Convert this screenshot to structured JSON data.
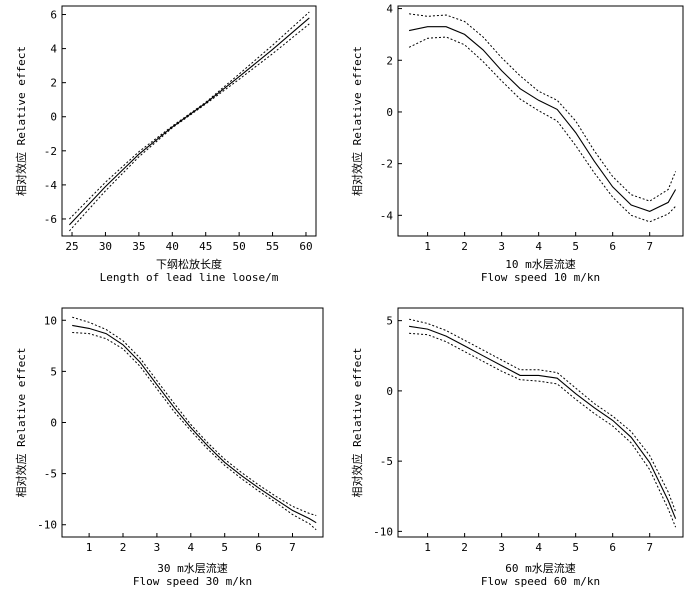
{
  "chart_data": [
    {
      "type": "line",
      "xlabel_cn": "下纲松放长度",
      "xlabel_en": "Length of lead line loose/m",
      "ylabel": "相对效应 Relative effect",
      "xlim": [
        23.5,
        61.5
      ],
      "ylim": [
        -7,
        6.5
      ],
      "xticks": [
        25,
        30,
        35,
        40,
        45,
        50,
        55,
        60
      ],
      "yticks": [
        -6,
        -4,
        -2,
        0,
        2,
        4,
        6
      ],
      "x": [
        24.6,
        30,
        35,
        40,
        45,
        50,
        55,
        60.5
      ],
      "fit": [
        -6.35,
        -4.1,
        -2.2,
        -0.6,
        0.8,
        2.35,
        3.95,
        5.8
      ],
      "upper": [
        -6.0,
        -3.85,
        -2.05,
        -0.55,
        0.85,
        2.5,
        4.2,
        6.15
      ],
      "lower": [
        -6.7,
        -4.35,
        -2.35,
        -0.65,
        0.75,
        2.2,
        3.7,
        5.45
      ]
    },
    {
      "type": "line",
      "xlabel_cn": "10 m水层流速",
      "xlabel_en": "Flow speed 10 m/kn",
      "ylabel": "相对效应 Relative effect",
      "xlim": [
        0.2,
        7.9
      ],
      "ylim": [
        -4.8,
        4.1
      ],
      "xticks": [
        1,
        2,
        3,
        4,
        5,
        6,
        7
      ],
      "yticks": [
        -4,
        -2,
        0,
        2,
        4
      ],
      "x": [
        0.5,
        1,
        1.5,
        2,
        2.5,
        3,
        3.5,
        4,
        4.5,
        5,
        5.5,
        6,
        6.5,
        7,
        7.5,
        7.7
      ],
      "fit": [
        3.15,
        3.3,
        3.3,
        3.0,
        2.4,
        1.6,
        0.9,
        0.45,
        0.1,
        -0.8,
        -1.9,
        -2.9,
        -3.6,
        -3.85,
        -3.5,
        -3.0
      ],
      "upper": [
        3.8,
        3.7,
        3.75,
        3.5,
        2.9,
        2.1,
        1.4,
        0.8,
        0.45,
        -0.35,
        -1.5,
        -2.5,
        -3.2,
        -3.45,
        -3.0,
        -2.3
      ],
      "lower": [
        2.5,
        2.85,
        2.9,
        2.6,
        1.95,
        1.2,
        0.5,
        0.05,
        -0.35,
        -1.3,
        -2.35,
        -3.3,
        -4.0,
        -4.25,
        -3.95,
        -3.65
      ]
    },
    {
      "type": "line",
      "xlabel_cn": "30 m水层流速",
      "xlabel_en": "Flow speed 30 m/kn",
      "ylabel": "相对效应 Relative effect",
      "xlim": [
        0.2,
        7.9
      ],
      "ylim": [
        -11.2,
        11.2
      ],
      "xticks": [
        1,
        2,
        3,
        4,
        5,
        6,
        7
      ],
      "yticks": [
        -10,
        -5,
        0,
        5,
        10
      ],
      "x": [
        0.5,
        1,
        1.5,
        2,
        2.5,
        3,
        3.5,
        4,
        4.5,
        5,
        5.5,
        6,
        6.5,
        7,
        7.5,
        7.7
      ],
      "fit": [
        9.5,
        9.2,
        8.7,
        7.6,
        5.9,
        3.7,
        1.5,
        -0.5,
        -2.3,
        -3.9,
        -5.2,
        -6.4,
        -7.5,
        -8.6,
        -9.4,
        -9.8
      ],
      "upper": [
        10.3,
        9.8,
        9.1,
        8.0,
        6.3,
        4.1,
        1.9,
        -0.2,
        -2.0,
        -3.6,
        -4.9,
        -6.1,
        -7.2,
        -8.2,
        -8.9,
        -9.1
      ],
      "lower": [
        8.8,
        8.7,
        8.2,
        7.2,
        5.5,
        3.3,
        1.1,
        -0.8,
        -2.6,
        -4.2,
        -5.5,
        -6.7,
        -7.8,
        -9.0,
        -9.9,
        -10.5
      ]
    },
    {
      "type": "line",
      "xlabel_cn": "60 m水层流速",
      "xlabel_en": "Flow speed 60 m/kn",
      "ylabel": "相对效应 Relative effect",
      "xlim": [
        0.2,
        7.9
      ],
      "ylim": [
        -10.4,
        5.9
      ],
      "xticks": [
        1,
        2,
        3,
        4,
        5,
        6,
        7
      ],
      "yticks": [
        -10,
        -5,
        0,
        5
      ],
      "x": [
        0.5,
        1,
        1.5,
        2,
        2.5,
        3,
        3.5,
        4,
        4.5,
        5,
        5.5,
        6,
        6.5,
        7,
        7.5,
        7.7
      ],
      "fit": [
        4.6,
        4.4,
        3.9,
        3.2,
        2.5,
        1.8,
        1.1,
        1.1,
        0.9,
        -0.2,
        -1.2,
        -2.1,
        -3.3,
        -5.1,
        -7.8,
        -9.1
      ],
      "upper": [
        5.1,
        4.8,
        4.3,
        3.6,
        2.9,
        2.2,
        1.5,
        1.5,
        1.3,
        0.2,
        -0.9,
        -1.8,
        -2.9,
        -4.6,
        -7.2,
        -8.6
      ],
      "lower": [
        4.1,
        4.0,
        3.5,
        2.8,
        2.1,
        1.4,
        0.8,
        0.7,
        0.5,
        -0.6,
        -1.6,
        -2.5,
        -3.7,
        -5.6,
        -8.4,
        -9.7
      ]
    }
  ]
}
